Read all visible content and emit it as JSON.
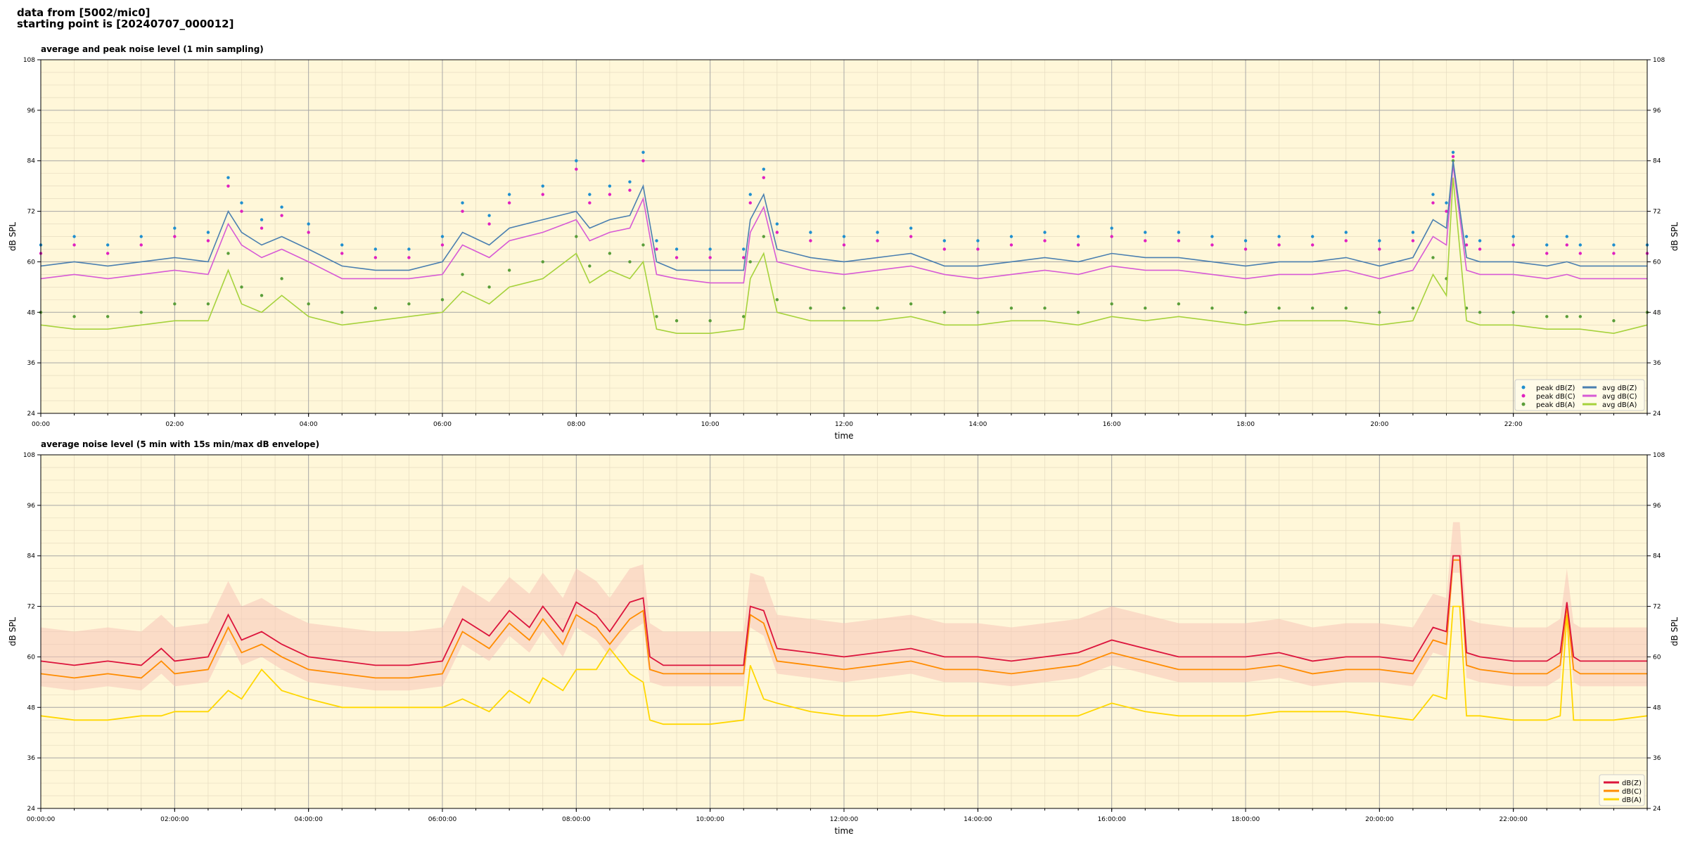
{
  "header": {
    "line1": "data from [5002/mic0]",
    "line2": "starting point is [20240707_000012]"
  },
  "colors": {
    "plot_bg": "#fff7d9",
    "peak_z": "#1f8fcf",
    "peak_c": "#e020c0",
    "peak_a": "#5a9e3a",
    "avg_z": "#4a7fb0",
    "avg_c": "#d75ad5",
    "avg_a": "#a6d23c",
    "db_z": "#dc143c",
    "db_c": "#ff8c00",
    "db_a": "#ffd700",
    "envelope": "#f7c7b8"
  },
  "chart_data": [
    {
      "type": "line",
      "title": "average and peak noise level (1 min sampling)",
      "xlabel": "time",
      "ylabel": "dB SPL",
      "ylim": [
        24,
        108
      ],
      "xlim_hours": [
        0,
        24
      ],
      "yticks": [
        "24",
        "36",
        "48",
        "60",
        "72",
        "84",
        "96",
        "108"
      ],
      "xticks": [
        "00:00",
        "02:00",
        "04:00",
        "06:00",
        "08:00",
        "10:00",
        "12:00",
        "14:00",
        "16:00",
        "18:00",
        "20:00",
        "22:00"
      ],
      "grid": true,
      "legend_position": "lower-right",
      "legend": [
        "peak dB(Z)",
        "peak dB(C)",
        "peak dB(A)",
        "avg dB(Z)",
        "avg dB(C)",
        "avg dB(A)"
      ],
      "x_hours": [
        0,
        0.5,
        1,
        1.5,
        2,
        2.5,
        2.8,
        3,
        3.3,
        3.6,
        4,
        4.5,
        5,
        5.5,
        6,
        6.3,
        6.7,
        7,
        7.5,
        8,
        8.2,
        8.5,
        8.8,
        9,
        9.2,
        9.5,
        10,
        10.5,
        10.6,
        10.8,
        11,
        11.5,
        12,
        12.5,
        13,
        13.5,
        14,
        14.5,
        15,
        15.5,
        16,
        16.5,
        17,
        17.5,
        18,
        18.5,
        19,
        19.5,
        20,
        20.5,
        20.8,
        21,
        21.1,
        21.3,
        21.5,
        22,
        22.5,
        22.8,
        23,
        23.5,
        24
      ],
      "series": [
        {
          "name": "avg dB(Z)",
          "values": [
            59,
            60,
            59,
            60,
            61,
            60,
            72,
            67,
            64,
            66,
            63,
            59,
            58,
            58,
            60,
            67,
            64,
            68,
            70,
            72,
            68,
            70,
            71,
            78,
            60,
            58,
            58,
            58,
            70,
            76,
            63,
            61,
            60,
            61,
            62,
            59,
            59,
            60,
            61,
            60,
            62,
            61,
            61,
            60,
            59,
            60,
            60,
            61,
            59,
            61,
            70,
            68,
            84,
            61,
            60,
            60,
            59,
            60,
            59,
            59,
            59
          ]
        },
        {
          "name": "avg dB(C)",
          "values": [
            56,
            57,
            56,
            57,
            58,
            57,
            69,
            64,
            61,
            63,
            60,
            56,
            56,
            56,
            57,
            64,
            61,
            65,
            67,
            70,
            65,
            67,
            68,
            75,
            57,
            56,
            55,
            55,
            67,
            73,
            60,
            58,
            57,
            58,
            59,
            57,
            56,
            57,
            58,
            57,
            59,
            58,
            58,
            57,
            56,
            57,
            57,
            58,
            56,
            58,
            66,
            64,
            83,
            58,
            57,
            57,
            56,
            57,
            56,
            56,
            56
          ]
        },
        {
          "name": "avg dB(A)",
          "values": [
            45,
            44,
            44,
            45,
            46,
            46,
            58,
            50,
            48,
            52,
            47,
            45,
            46,
            47,
            48,
            53,
            50,
            54,
            56,
            62,
            55,
            58,
            56,
            60,
            44,
            43,
            43,
            44,
            56,
            62,
            48,
            46,
            46,
            46,
            47,
            45,
            45,
            46,
            46,
            45,
            47,
            46,
            47,
            46,
            45,
            46,
            46,
            46,
            45,
            46,
            57,
            52,
            80,
            46,
            45,
            45,
            44,
            44,
            44,
            43,
            45
          ]
        },
        {
          "name": "peak dB(Z)",
          "values": [
            64,
            66,
            64,
            66,
            68,
            67,
            80,
            74,
            70,
            73,
            69,
            64,
            63,
            63,
            66,
            74,
            71,
            76,
            78,
            84,
            76,
            78,
            79,
            86,
            65,
            63,
            63,
            63,
            76,
            82,
            69,
            67,
            66,
            67,
            68,
            65,
            65,
            66,
            67,
            66,
            68,
            67,
            67,
            66,
            65,
            66,
            66,
            67,
            65,
            67,
            76,
            74,
            86,
            66,
            65,
            66,
            64,
            66,
            64,
            64,
            64
          ]
        },
        {
          "name": "peak dB(C)",
          "values": [
            62,
            64,
            62,
            64,
            66,
            65,
            78,
            72,
            68,
            71,
            67,
            62,
            61,
            61,
            64,
            72,
            69,
            74,
            76,
            82,
            74,
            76,
            77,
            84,
            63,
            61,
            61,
            61,
            74,
            80,
            67,
            65,
            64,
            65,
            66,
            63,
            63,
            64,
            65,
            64,
            66,
            65,
            65,
            64,
            63,
            64,
            64,
            65,
            63,
            65,
            74,
            72,
            85,
            64,
            63,
            64,
            62,
            64,
            62,
            62,
            62
          ]
        },
        {
          "name": "peak dB(A)",
          "values": [
            48,
            47,
            47,
            48,
            50,
            50,
            62,
            54,
            52,
            56,
            50,
            48,
            49,
            50,
            51,
            57,
            54,
            58,
            60,
            66,
            59,
            62,
            60,
            64,
            47,
            46,
            46,
            47,
            60,
            66,
            51,
            49,
            49,
            49,
            50,
            48,
            48,
            49,
            49,
            48,
            50,
            49,
            50,
            49,
            48,
            49,
            49,
            49,
            48,
            49,
            61,
            56,
            84,
            49,
            48,
            48,
            47,
            47,
            47,
            46,
            48
          ]
        }
      ]
    },
    {
      "type": "line",
      "title": "average noise level (5 min with 15s min/max dB envelope)",
      "xlabel": "time",
      "ylabel": "dB SPL",
      "ylim": [
        24,
        108
      ],
      "xlim_hours": [
        0,
        24
      ],
      "yticks": [
        "24",
        "36",
        "48",
        "60",
        "72",
        "84",
        "96",
        "108"
      ],
      "xticks": [
        "00:00:00",
        "02:00:00",
        "04:00:00",
        "06:00:00",
        "08:00:00",
        "10:00:00",
        "12:00:00",
        "14:00:00",
        "16:00:00",
        "18:00:00",
        "20:00:00",
        "22:00:00"
      ],
      "grid": true,
      "legend_position": "lower-right",
      "legend": [
        "dB(Z)",
        "dB(C)",
        "dB(A)"
      ],
      "x_hours": [
        0,
        0.5,
        1,
        1.5,
        1.8,
        2,
        2.5,
        2.8,
        3,
        3.3,
        3.6,
        4,
        4.5,
        5,
        5.5,
        6,
        6.3,
        6.7,
        7,
        7.3,
        7.5,
        7.8,
        8,
        8.3,
        8.5,
        8.8,
        9,
        9.1,
        9.3,
        9.5,
        10,
        10.5,
        10.6,
        10.8,
        11,
        11.5,
        12,
        12.5,
        13,
        13.5,
        14,
        14.5,
        15,
        15.5,
        16,
        16.5,
        17,
        17.5,
        18,
        18.5,
        19,
        19.5,
        20,
        20.5,
        20.8,
        21,
        21.1,
        21.2,
        21.3,
        21.5,
        22,
        22.5,
        22.7,
        22.8,
        22.9,
        23,
        23.5,
        24
      ],
      "series": [
        {
          "name": "dB(Z)",
          "values": [
            59,
            58,
            59,
            58,
            62,
            59,
            60,
            70,
            64,
            66,
            63,
            60,
            59,
            58,
            58,
            59,
            69,
            65,
            71,
            67,
            72,
            66,
            73,
            70,
            66,
            73,
            74,
            60,
            58,
            58,
            58,
            58,
            72,
            71,
            62,
            61,
            60,
            61,
            62,
            60,
            60,
            59,
            60,
            61,
            64,
            62,
            60,
            60,
            60,
            61,
            59,
            60,
            60,
            59,
            67,
            66,
            84,
            84,
            61,
            60,
            59,
            59,
            61,
            73,
            60,
            59,
            59,
            59
          ]
        },
        {
          "name": "dB(C)",
          "values": [
            56,
            55,
            56,
            55,
            59,
            56,
            57,
            67,
            61,
            63,
            60,
            57,
            56,
            55,
            55,
            56,
            66,
            62,
            68,
            64,
            69,
            63,
            70,
            67,
            63,
            69,
            71,
            57,
            56,
            56,
            56,
            56,
            70,
            68,
            59,
            58,
            57,
            58,
            59,
            57,
            57,
            56,
            57,
            58,
            61,
            59,
            57,
            57,
            57,
            58,
            56,
            57,
            57,
            56,
            64,
            63,
            83,
            83,
            58,
            57,
            56,
            56,
            58,
            72,
            57,
            56,
            56,
            56
          ]
        },
        {
          "name": "dB(A)",
          "values": [
            46,
            45,
            45,
            46,
            46,
            47,
            47,
            52,
            50,
            57,
            52,
            50,
            48,
            48,
            48,
            48,
            50,
            47,
            52,
            49,
            55,
            52,
            57,
            57,
            62,
            56,
            54,
            45,
            44,
            44,
            44,
            45,
            58,
            50,
            49,
            47,
            46,
            46,
            47,
            46,
            46,
            46,
            46,
            46,
            49,
            47,
            46,
            46,
            46,
            47,
            47,
            47,
            46,
            45,
            51,
            50,
            72,
            72,
            46,
            46,
            45,
            45,
            46,
            70,
            45,
            45,
            45,
            46
          ]
        }
      ]
    }
  ]
}
